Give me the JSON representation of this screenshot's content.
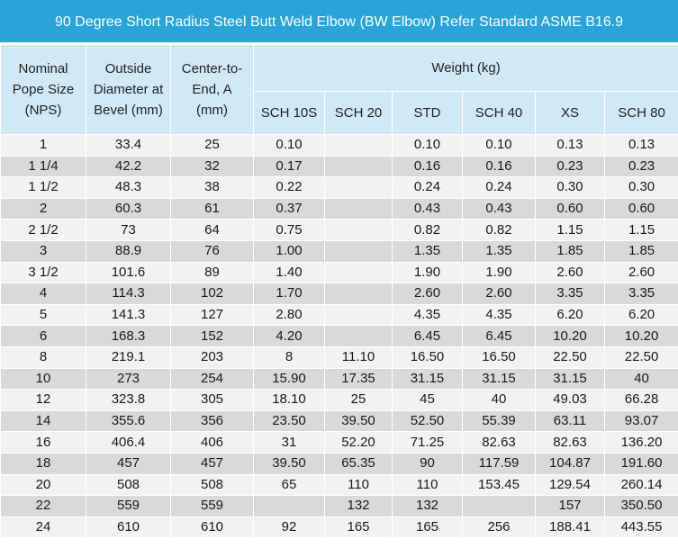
{
  "title": "90 Degree Short Radius Steel Butt Weld Elbow (BW Elbow) Refer Standard ASME B16.9",
  "headers": {
    "nps": [
      "Nominal",
      "Pope Size",
      "(NPS)"
    ],
    "od": [
      "Outside",
      "Diameter at",
      "Bevel  (mm)"
    ],
    "cte": [
      "Center-to-",
      "End, A",
      "(mm)"
    ],
    "weight": "Weight  (kg)",
    "schedules": [
      "SCH 10S",
      "SCH 20",
      "STD",
      "SCH 40",
      "XS",
      "SCH 80"
    ]
  },
  "rows": [
    [
      "1",
      "33.4",
      "25",
      "0.10",
      "",
      "0.10",
      "0.10",
      "0.13",
      "0.13"
    ],
    [
      "1 1/4",
      "42.2",
      "32",
      "0.17",
      "",
      "0.16",
      "0.16",
      "0.23",
      "0.23"
    ],
    [
      "1 1/2",
      "48.3",
      "38",
      "0.22",
      "",
      "0.24",
      "0.24",
      "0.30",
      "0.30"
    ],
    [
      "2",
      "60.3",
      "61",
      "0.37",
      "",
      "0.43",
      "0.43",
      "0.60",
      "0.60"
    ],
    [
      "2 1/2",
      "73",
      "64",
      "0.75",
      "",
      "0.82",
      "0.82",
      "1.15",
      "1.15"
    ],
    [
      "3",
      "88.9",
      "76",
      "1.00",
      "",
      "1.35",
      "1.35",
      "1.85",
      "1.85"
    ],
    [
      "3 1/2",
      "101.6",
      "89",
      "1.40",
      "",
      "1.90",
      "1.90",
      "2.60",
      "2.60"
    ],
    [
      "4",
      "114.3",
      "102",
      "1.70",
      "",
      "2.60",
      "2.60",
      "3.35",
      "3.35"
    ],
    [
      "5",
      "141.3",
      "127",
      "2.80",
      "",
      "4.35",
      "4.35",
      "6.20",
      "6.20"
    ],
    [
      "6",
      "168.3",
      "152",
      "4.20",
      "",
      "6.45",
      "6.45",
      "10.20",
      "10.20"
    ],
    [
      "8",
      "219.1",
      "203",
      "8",
      "11.10",
      "16.50",
      "16.50",
      "22.50",
      "22.50"
    ],
    [
      "10",
      "273",
      "254",
      "15.90",
      "17.35",
      "31.15",
      "31.15",
      "31.15",
      "40"
    ],
    [
      "12",
      "323.8",
      "305",
      "18.10",
      "25",
      "45",
      "40",
      "49.03",
      "66.28"
    ],
    [
      "14",
      "355.6",
      "356",
      "23.50",
      "39.50",
      "52.50",
      "55.39",
      "63.11",
      "93.07"
    ],
    [
      "16",
      "406.4",
      "406",
      "31",
      "52.20",
      "71.25",
      "82.63",
      "82.63",
      "136.20"
    ],
    [
      "18",
      "457",
      "457",
      "39.50",
      "65.35",
      "90",
      "117.59",
      "104.87",
      "191.60"
    ],
    [
      "20",
      "508",
      "508",
      "65",
      "110",
      "110",
      "153.45",
      "129.54",
      "260.14"
    ],
    [
      "22",
      "559",
      "559",
      "",
      "132",
      "132",
      "",
      "157",
      "350.50"
    ],
    [
      "24",
      "610",
      "610",
      "92",
      "165",
      "165",
      "256",
      "188.41",
      "443.55"
    ]
  ]
}
